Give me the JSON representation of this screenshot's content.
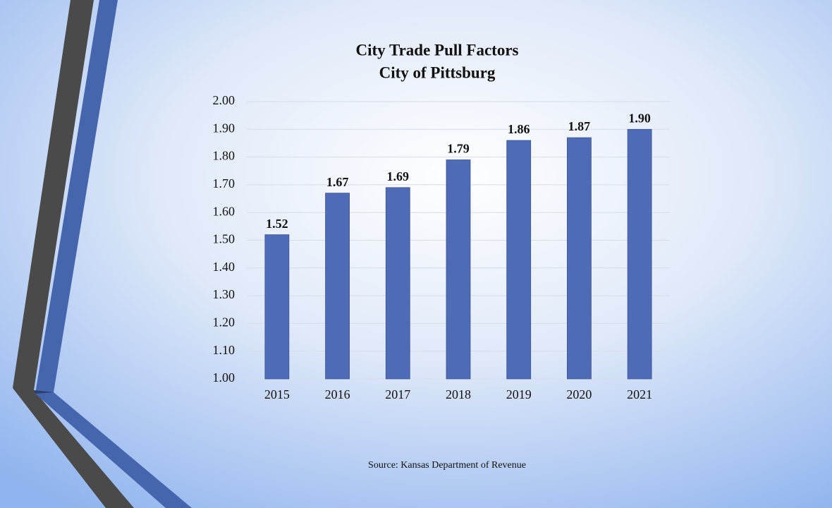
{
  "chart_data": {
    "type": "bar",
    "title": "City Trade Pull Factors",
    "subtitle": "City of Pittsburg",
    "source": "Source:  Kansas Department  of Revenue",
    "categories": [
      "2015",
      "2016",
      "2017",
      "2018",
      "2019",
      "2020",
      "2021"
    ],
    "values": [
      1.52,
      1.67,
      1.69,
      1.79,
      1.86,
      1.87,
      1.9
    ],
    "value_labels": [
      "1.52",
      "1.67",
      "1.69",
      "1.79",
      "1.86",
      "1.87",
      "1.90"
    ],
    "color": "#4f6bb5",
    "ylim": [
      1,
      2
    ],
    "yticks": [
      {
        "value": 1,
        "label": "1.00"
      },
      {
        "value": 1.1,
        "label": "1.10"
      },
      {
        "value": 1.2,
        "label": "1.20"
      },
      {
        "value": 1.3,
        "label": "1.30"
      },
      {
        "value": 1.4,
        "label": "1.40"
      },
      {
        "value": 1.5,
        "label": "1.50"
      },
      {
        "value": 1.6,
        "label": "1.60"
      },
      {
        "value": 1.7,
        "label": "1.70"
      },
      {
        "value": 1.8,
        "label": "1.80"
      },
      {
        "value": 1.9,
        "label": "1.90"
      },
      {
        "value": 2,
        "label": "2.00"
      }
    ],
    "grid": true
  }
}
